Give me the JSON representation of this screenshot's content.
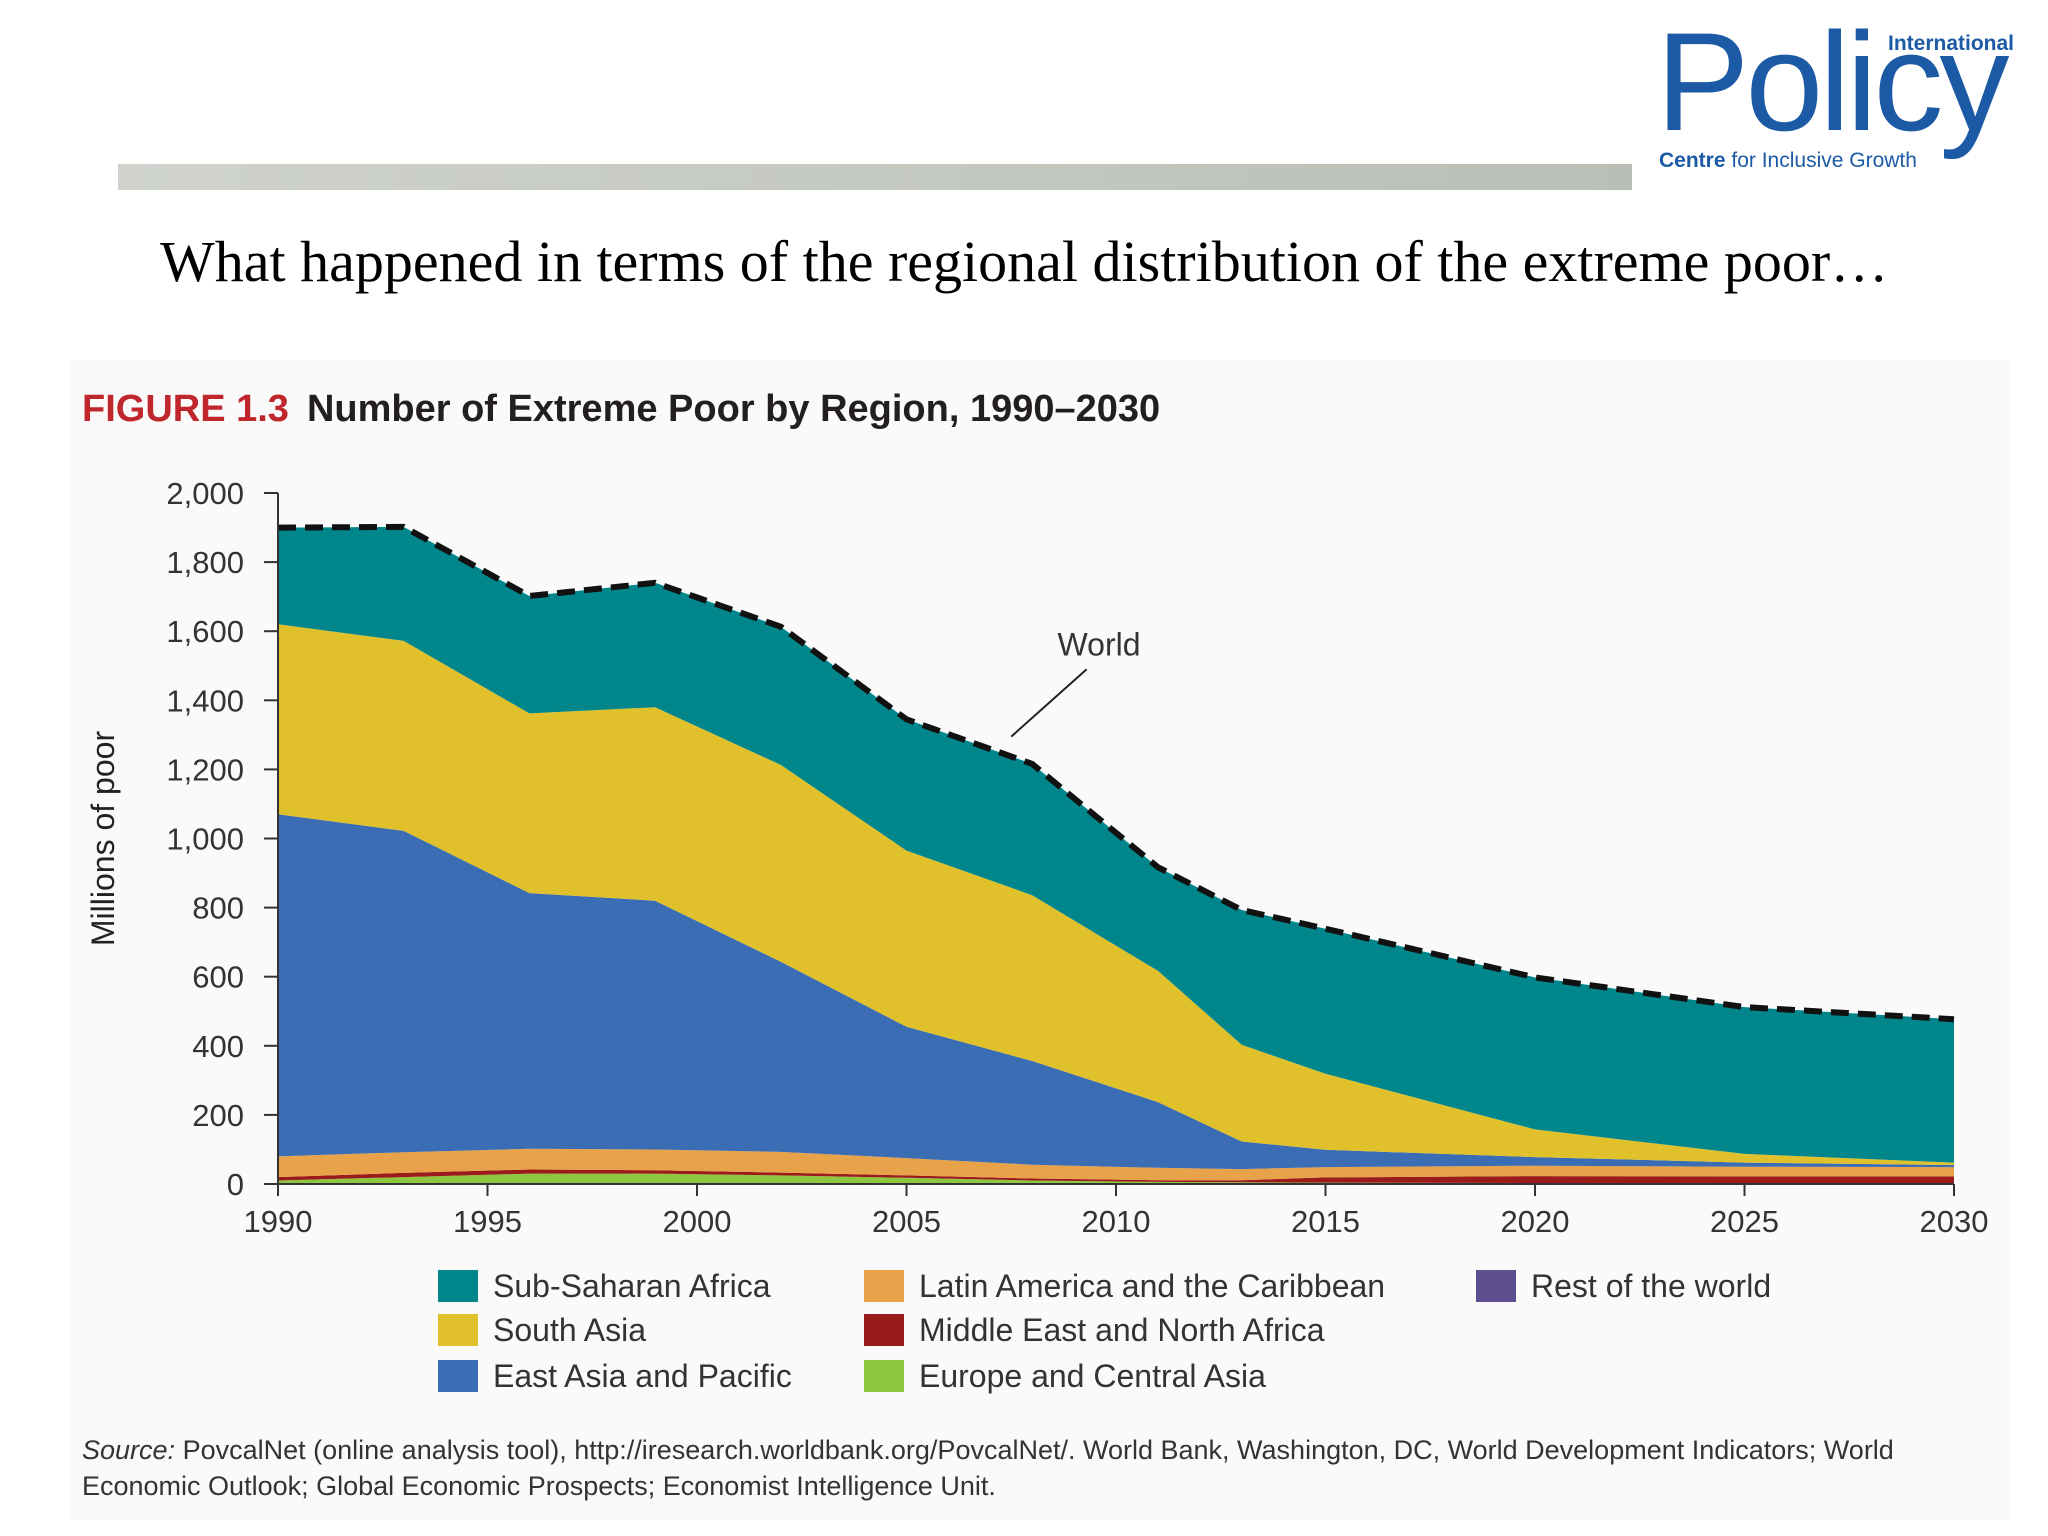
{
  "slide": {
    "headline": "What happened in terms of the regional distribution of the extreme poor…"
  },
  "logo": {
    "word": "Policy",
    "international": "International",
    "centre_bold": "Centre",
    "centre_rest": " for Inclusive Growth",
    "color": "#1c5aa6"
  },
  "figure": {
    "number": "FIGURE 1.3",
    "title": "Number of Extreme Poor by Region, 1990–2030",
    "number_color": "#c0272d"
  },
  "source": {
    "label": "Source:",
    "text": " PovcalNet (online analysis tool), http://iresearch.worldbank.org/PovcalNet/. World Bank, Washington, DC, World Development Indicators; World Economic Outlook; Global Economic Prospects; Economist Intelligence Unit."
  },
  "chart_data": {
    "type": "area",
    "stacked": true,
    "ylabel": "Millions of poor",
    "xlim": [
      1990,
      2030
    ],
    "ylim": [
      0,
      2000
    ],
    "x_ticks": [
      1990,
      1995,
      2000,
      2005,
      2010,
      2015,
      2020,
      2025,
      2030
    ],
    "y_ticks": [
      0,
      200,
      400,
      600,
      800,
      1000,
      1200,
      1400,
      1600,
      1800,
      2000
    ],
    "y_tick_labels": [
      "0",
      "200",
      "400",
      "600",
      "800",
      "1,000",
      "1,200",
      "1,400",
      "1,600",
      "1,800",
      "2,000"
    ],
    "annotation": "World",
    "legend_position": "bottom",
    "x": [
      1990,
      1993,
      1996,
      1999,
      2002,
      2005,
      2008,
      2011,
      2013,
      2015,
      2020,
      2025,
      2030
    ],
    "series": [
      {
        "name": "Europe and Central Asia",
        "color": "#8dc63f",
        "values": [
          10,
          20,
          30,
          30,
          25,
          18,
          10,
          6,
          5,
          4,
          3,
          2,
          2
        ]
      },
      {
        "name": "Middle East and North Africa",
        "color": "#9b1b1b",
        "values": [
          10,
          12,
          12,
          10,
          8,
          7,
          6,
          5,
          6,
          15,
          20,
          20,
          20
        ]
      },
      {
        "name": "Latin America and the Caribbean",
        "color": "#e8a24a",
        "values": [
          60,
          60,
          60,
          60,
          60,
          50,
          40,
          36,
          32,
          30,
          30,
          28,
          27
        ]
      },
      {
        "name": "East Asia and Pacific",
        "color": "#3a6db3",
        "values": [
          990,
          930,
          740,
          720,
          550,
          380,
          300,
          190,
          80,
          50,
          25,
          12,
          6
        ]
      },
      {
        "name": "South Asia",
        "color": "#e1c12b",
        "values": [
          550,
          550,
          520,
          560,
          570,
          510,
          480,
          380,
          280,
          220,
          80,
          25,
          7
        ]
      },
      {
        "name": "Sub-Saharan Africa",
        "color": "#00868b",
        "values": [
          280,
          330,
          340,
          360,
          400,
          380,
          380,
          300,
          390,
          420,
          440,
          425,
          415
        ]
      },
      {
        "name": "Rest of the world",
        "color": "#5c4e8f",
        "values": [
          0,
          0,
          0,
          0,
          0,
          0,
          0,
          0,
          0,
          0,
          0,
          0,
          0
        ]
      }
    ],
    "world_total": [
      1900,
      1902,
      1702,
      1740,
      1613,
      1345,
      1216,
      917,
      793,
      739,
      598,
      512,
      477
    ]
  },
  "legend": {
    "col1": [
      {
        "name": "Sub-Saharan Africa",
        "color": "#00868b"
      },
      {
        "name": "South Asia",
        "color": "#e1c12b"
      },
      {
        "name": "East Asia and Pacific",
        "color": "#3a6db3"
      }
    ],
    "col2": [
      {
        "name": "Latin America and the Caribbean",
        "color": "#e8a24a"
      },
      {
        "name": "Middle East and North Africa",
        "color": "#9b1b1b"
      },
      {
        "name": "Europe and Central Asia",
        "color": "#8dc63f"
      }
    ],
    "col3": [
      {
        "name": "Rest of the world",
        "color": "#5c4e8f"
      }
    ]
  }
}
